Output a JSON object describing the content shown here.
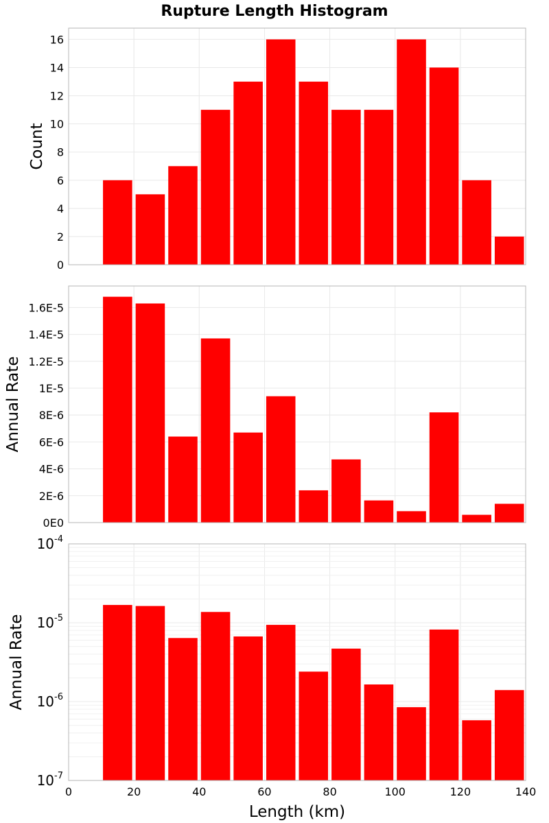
{
  "chart_data": {
    "type": "bar",
    "title": "Rupture Length Histogram",
    "xlabel": "Length (km)",
    "x_ticks": [
      "0",
      "20",
      "40",
      "60",
      "80",
      "100",
      "120",
      "140"
    ],
    "x_tick_values": [
      0,
      20,
      40,
      60,
      80,
      100,
      120,
      140
    ],
    "xlim": [
      0,
      140
    ],
    "bin_width": 10,
    "bin_starts": [
      10,
      20,
      30,
      40,
      50,
      60,
      70,
      80,
      90,
      100,
      110,
      120,
      130
    ],
    "bar_color": "#ff0000",
    "grid": true,
    "panels": [
      {
        "ylabel": "Count",
        "scale": "linear",
        "ylim": [
          0,
          16.8
        ],
        "y_ticks": [
          "0",
          "2",
          "4",
          "6",
          "8",
          "10",
          "12",
          "14",
          "16"
        ],
        "y_tick_values": [
          0,
          2,
          4,
          6,
          8,
          10,
          12,
          14,
          16
        ],
        "values": [
          6,
          5,
          7,
          11,
          13,
          16,
          13,
          11,
          11,
          16,
          14,
          6,
          2
        ]
      },
      {
        "ylabel": "Annual Rate",
        "scale": "linear",
        "ylim": [
          0,
          1.76e-05
        ],
        "y_ticks": [
          "0E0",
          "2E-6",
          "4E-6",
          "6E-6",
          "8E-6",
          "1E-5",
          "1.2E-5",
          "1.4E-5",
          "1.6E-5"
        ],
        "y_tick_values": [
          0,
          2e-06,
          4e-06,
          6e-06,
          8e-06,
          1e-05,
          1.2e-05,
          1.4e-05,
          1.6e-05
        ],
        "values": [
          1.68e-05,
          1.63e-05,
          6.4e-06,
          1.37e-05,
          6.7e-06,
          9.4e-06,
          2.4e-06,
          4.7e-06,
          1.65e-06,
          8.5e-07,
          8.2e-06,
          5.8e-07,
          1.4e-06
        ]
      },
      {
        "ylabel": "Annual Rate",
        "scale": "log",
        "ylim": [
          1e-07,
          0.0001
        ],
        "y_ticks": [
          {
            "base": "10",
            "exp": "-7",
            "value": 1e-07
          },
          {
            "base": "10",
            "exp": "-6",
            "value": 1e-06
          },
          {
            "base": "10",
            "exp": "-5",
            "value": 1e-05
          },
          {
            "base": "10",
            "exp": "-4",
            "value": 0.0001
          }
        ],
        "values": [
          1.68e-05,
          1.63e-05,
          6.4e-06,
          1.37e-05,
          6.7e-06,
          9.4e-06,
          2.4e-06,
          4.7e-06,
          1.65e-06,
          8.5e-07,
          8.2e-06,
          5.8e-07,
          1.4e-06
        ]
      }
    ]
  }
}
